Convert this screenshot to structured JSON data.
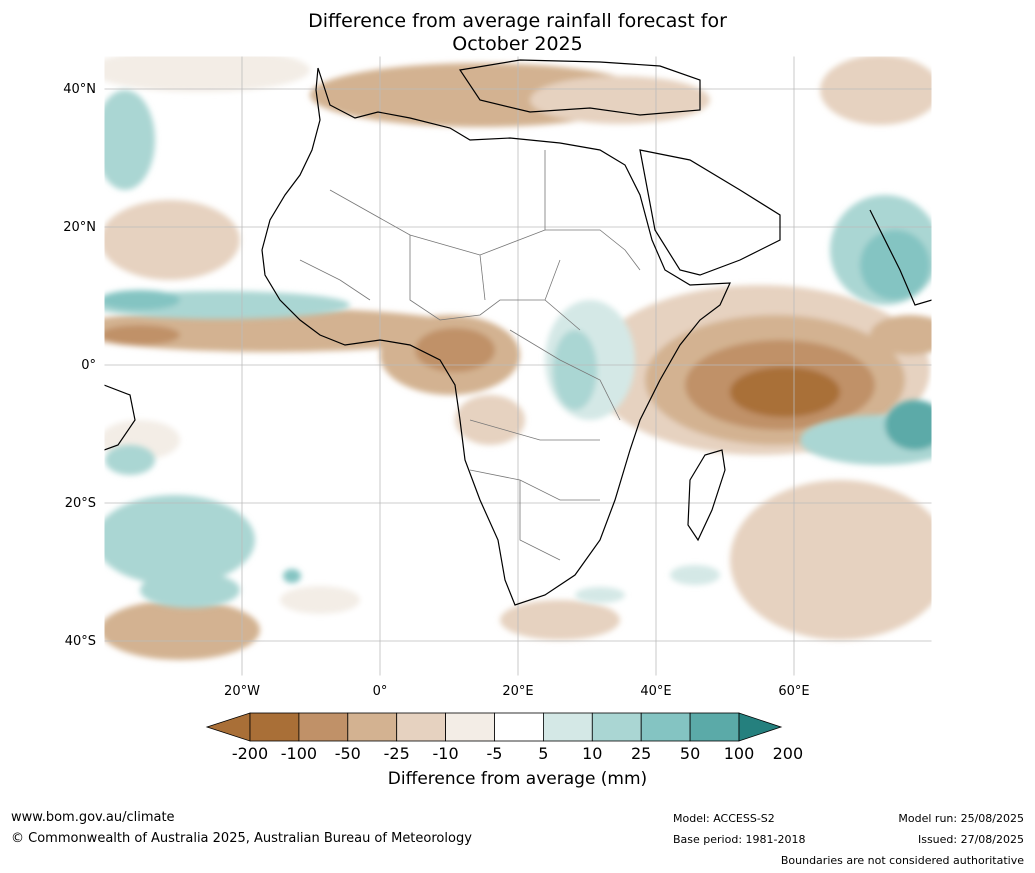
{
  "title": {
    "line1": "Difference from average rainfall forecast for",
    "line2": "October 2025"
  },
  "map": {
    "region": "Africa",
    "lat_labels": [
      "40°N",
      "20°N",
      "0°",
      "20°S",
      "40°S"
    ],
    "lon_labels": [
      "20°W",
      "0°",
      "20°E",
      "40°E",
      "60°E"
    ],
    "grid": true
  },
  "colorbar": {
    "ticks": [
      "-200",
      "-100",
      "-50",
      "-25",
      "-10",
      "-5",
      "5",
      "10",
      "25",
      "50",
      "100",
      "200"
    ],
    "colors": [
      "#a96f37",
      "#c09168",
      "#d3b291",
      "#e6d2c0",
      "#f3ede6",
      "#ffffff",
      "#d4e8e6",
      "#aad6d3",
      "#84c4c2",
      "#5baaa8",
      "#329895",
      "#25807e"
    ],
    "label": "Difference from average (mm)"
  },
  "footer": {
    "website": "www.bom.gov.au/climate",
    "copyright": "© Commonwealth of Australia 2025, Australian Bureau of Meteorology",
    "model": "Model: ACCESS-S2",
    "base_period": "Base period: 1981-2018",
    "model_run": "Model run: 25/08/2025",
    "issued": "Issued: 27/08/2025",
    "disclaimer": "Boundaries are not considered authoritative"
  }
}
